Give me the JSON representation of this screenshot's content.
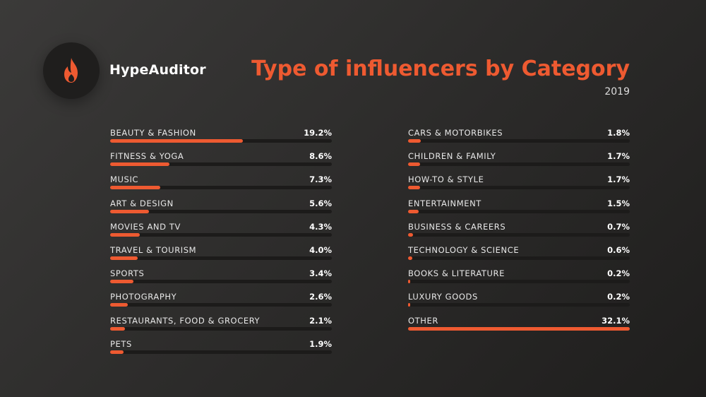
{
  "brand": {
    "name": "HypeAuditor",
    "icon": "flame-icon",
    "icon_color": "#ee5a31"
  },
  "title": "Type of influencers by Category",
  "subtitle": "2019",
  "colors": {
    "accent": "#ee5a31",
    "track": "#1c1b1a"
  },
  "chart_data": {
    "type": "bar",
    "title": "Type of influencers by Category",
    "subtitle": "2019",
    "unit": "%",
    "scale_max": 32.1,
    "left_column": [
      {
        "label": "BEAUTY & FASHION",
        "value": 19.2,
        "display": "19.2%"
      },
      {
        "label": "FITNESS & YOGA",
        "value": 8.6,
        "display": "8.6%"
      },
      {
        "label": "MUSIC",
        "value": 7.3,
        "display": "7.3%"
      },
      {
        "label": "ART & DESIGN",
        "value": 5.6,
        "display": "5.6%"
      },
      {
        "label": "MOVIES AND TV",
        "value": 4.3,
        "display": "4.3%"
      },
      {
        "label": "TRAVEL & TOURISM",
        "value": 4.0,
        "display": "4.0%"
      },
      {
        "label": "SPORTS",
        "value": 3.4,
        "display": "3.4%"
      },
      {
        "label": "PHOTOGRAPHY",
        "value": 2.6,
        "display": "2.6%"
      },
      {
        "label": "RESTAURANTS, FOOD & GROCERY",
        "value": 2.1,
        "display": "2.1%"
      },
      {
        "label": "PETS",
        "value": 1.9,
        "display": "1.9%"
      }
    ],
    "right_column": [
      {
        "label": "CARS & MOTORBIKES",
        "value": 1.8,
        "display": "1.8%"
      },
      {
        "label": "CHILDREN & FAMILY",
        "value": 1.7,
        "display": "1.7%"
      },
      {
        "label": "HOW-TO & STYLE",
        "value": 1.7,
        "display": "1.7%"
      },
      {
        "label": "ENTERTAINMENT",
        "value": 1.5,
        "display": "1.5%"
      },
      {
        "label": "BUSINESS & CAREERS",
        "value": 0.7,
        "display": "0.7%"
      },
      {
        "label": "TECHNOLOGY & SCIENCE",
        "value": 0.6,
        "display": "0.6%"
      },
      {
        "label": "BOOKS & LITERATURE",
        "value": 0.2,
        "display": "0.2%"
      },
      {
        "label": "LUXURY GOODS",
        "value": 0.2,
        "display": "0.2%"
      },
      {
        "label": "OTHER",
        "value": 32.1,
        "display": "32.1%"
      }
    ]
  }
}
